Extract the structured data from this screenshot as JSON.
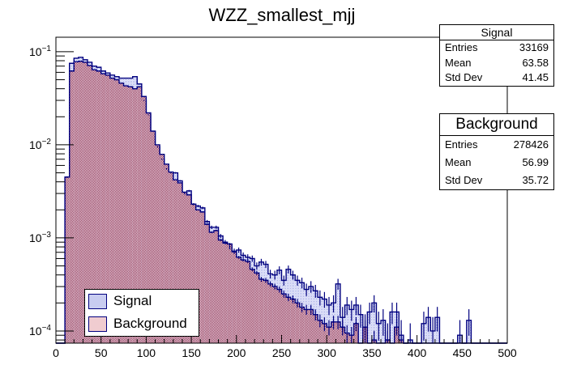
{
  "chart_data": {
    "type": "bar",
    "subtype": "histogram-overlay",
    "title": "WZZ_smallest_mjj",
    "xlabel": "",
    "ylabel": "",
    "xlim": [
      0,
      500
    ],
    "ylim": [
      7.4e-05,
      0.143
    ],
    "yscale": "log",
    "bin_width": 5,
    "x_ticks": [
      0,
      50,
      100,
      150,
      200,
      250,
      300,
      350,
      400,
      450,
      500
    ],
    "x_tick_labels": [
      "0",
      "50",
      "100",
      "150",
      "200",
      "250",
      "300",
      "350",
      "400",
      "450",
      "500"
    ],
    "y_tick_labels": [
      {
        "base": "10",
        "exp": "−1",
        "value": 0.1
      },
      {
        "base": "10",
        "exp": "−2",
        "value": 0.01
      },
      {
        "base": "10",
        "exp": "−3",
        "value": 0.001
      },
      {
        "base": "10",
        "exp": "−4",
        "value": 0.0001
      }
    ],
    "legend_position": "bottom-left",
    "series": [
      {
        "name": "Background",
        "color": "#00007f",
        "fill": "#c8a0b0",
        "values": [
          0,
          0,
          0.0045,
          0.062,
          0.078,
          0.079,
          0.077,
          0.071,
          0.064,
          0.062,
          0.058,
          0.056,
          0.052,
          0.05,
          0.046,
          0.043,
          0.042,
          0.04,
          0.042,
          0.033,
          0.022,
          0.014,
          0.01,
          0.0079,
          0.0062,
          0.0051,
          0.0042,
          0.0039,
          0.0031,
          0.0029,
          0.0023,
          0.002,
          0.0019,
          0.0014,
          0.00115,
          0.0012,
          0.00095,
          0.00088,
          0.00086,
          0.00071,
          0.00062,
          0.00058,
          0.00056,
          0.00046,
          0.00042,
          0.00036,
          0.00035,
          0.00032,
          0.0003,
          0.00028,
          0.00025,
          0.00023,
          0.00022,
          0.0002,
          0.00018,
          0.00017,
          0.00017,
          0.00015,
          0.00013,
          0.00012,
          0.00011,
          0.000125,
          0.000125,
          0.00011,
          9.5e-05,
          9e-05,
          0.00012,
          0,
          0.00011,
          0,
          8e-05,
          0,
          0,
          8e-05,
          0,
          0.00011,
          8e-05,
          0,
          0,
          0,
          0,
          0,
          0,
          0,
          0,
          0,
          0,
          0,
          0,
          0,
          0,
          0,
          0,
          0,
          0,
          0,
          0,
          0,
          0,
          0
        ],
        "errors_shown": true
      },
      {
        "name": "Signal",
        "color": "#00007f",
        "fill": "#b8c0e8",
        "values": [
          0,
          0,
          0.0045,
          0.075,
          0.085,
          0.087,
          0.082,
          0.077,
          0.07,
          0.068,
          0.062,
          0.059,
          0.056,
          0.054,
          0.052,
          0.052,
          0.052,
          0.054,
          0.045,
          0.03,
          0.021,
          0.014,
          0.0095,
          0.007,
          0.0055,
          0.005,
          0.005,
          0.0041,
          0.003,
          0.0032,
          0.0023,
          0.0022,
          0.0021,
          0.0015,
          0.0013,
          0.0013,
          0.00105,
          0.0009,
          0.0008,
          0.00072,
          0.00074,
          0.00065,
          0.00062,
          0.0006,
          0.0005,
          0.00055,
          0.00052,
          0.00041,
          0.0004,
          0.00045,
          0.00035,
          0.00046,
          0.0004,
          0.00035,
          0.00033,
          0.00028,
          0.0003,
          0.00027,
          0.00023,
          0.00022,
          0.00019,
          0.0002,
          0.00032,
          0.00014,
          0.00019,
          0.00017,
          0.00019,
          0.00015,
          0.00011,
          0.00016,
          0.0002,
          0.00012,
          0.00013,
          8e-05,
          0.00016,
          0.00016,
          9e-05,
          0,
          8e-05,
          0,
          0,
          0.00012,
          0.00014,
          0.0001,
          0.00014,
          0,
          0,
          0,
          0,
          9e-05,
          0,
          0.00013,
          0,
          0,
          0,
          0,
          0,
          0,
          0,
          0
        ],
        "errors_shown": true
      }
    ]
  },
  "stats": {
    "signal": {
      "title": "Signal",
      "rows": [
        {
          "label": "Entries",
          "value": "33169"
        },
        {
          "label": "Mean",
          "value": "63.58"
        },
        {
          "label": "Std Dev",
          "value": "41.45"
        }
      ]
    },
    "background": {
      "title": "Background",
      "rows": [
        {
          "label": "Entries",
          "value": "278426"
        },
        {
          "label": "Mean",
          "value": "56.99"
        },
        {
          "label": "Std Dev",
          "value": "35.72"
        }
      ]
    }
  },
  "legend": {
    "items": [
      {
        "label": "Signal",
        "color": "#b8c0e8"
      },
      {
        "label": "Background",
        "color": "#f0c8c8"
      }
    ]
  }
}
